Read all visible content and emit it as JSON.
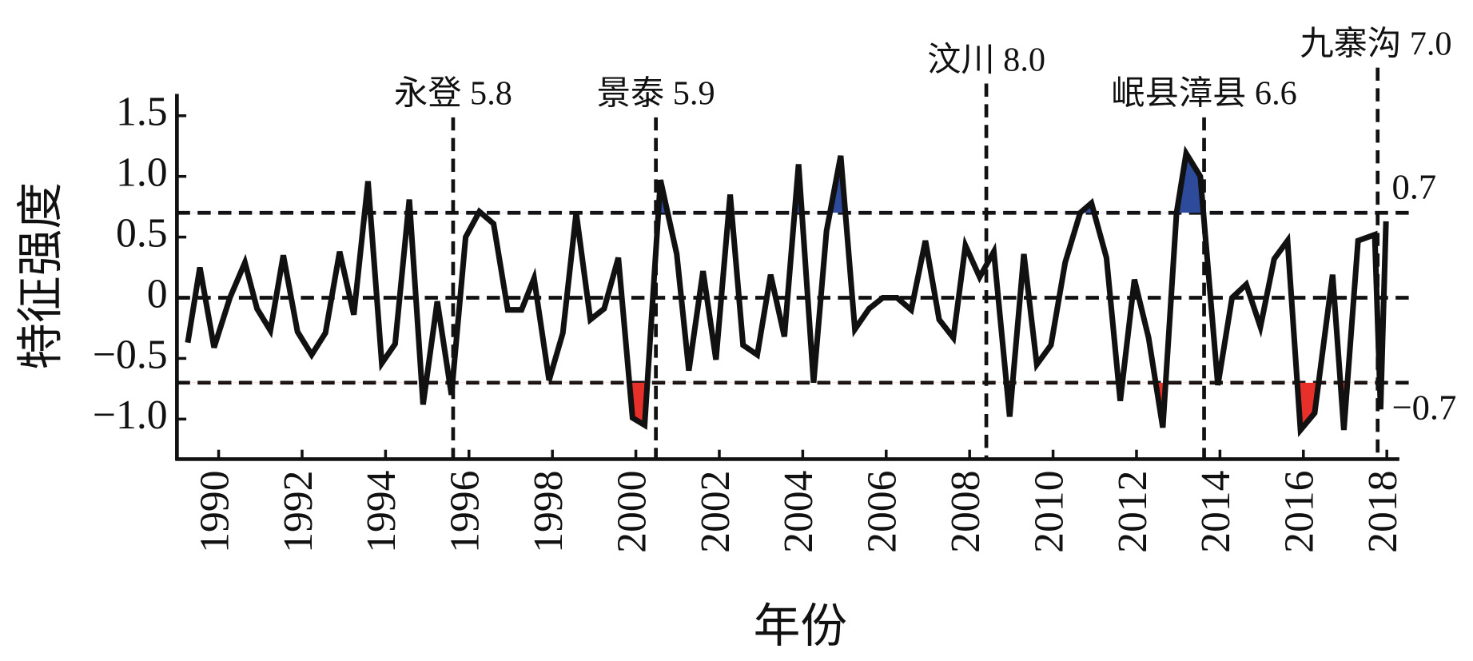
{
  "chart_data": {
    "type": "line",
    "xlabel": "年份",
    "ylabel": "特征强度",
    "xlim": [
      1989,
      2018.3
    ],
    "ylim": [
      -1.33,
      1.68
    ],
    "xticks": [
      1990,
      1992,
      1994,
      1996,
      1998,
      2000,
      2002,
      2004,
      2006,
      2008,
      2010,
      2012,
      2014,
      2016,
      2018
    ],
    "yticks": [
      {
        "value": -1.0,
        "label": "−1.0"
      },
      {
        "value": -0.5,
        "label": "−0.5"
      },
      0,
      0.5,
      {
        "value": 1.0,
        "label": "1.0"
      },
      1.5
    ],
    "reference_lines": [
      {
        "value": 0.7,
        "label": "0.7"
      },
      {
        "value": 0
      },
      {
        "value": -0.7,
        "label": "−0.7"
      }
    ],
    "fill_above_color": "#2e4a9a",
    "fill_below_color": "#e8302a",
    "events": [
      {
        "x": 1995.62,
        "label": "永登 5.8"
      },
      {
        "x": 2000.48,
        "label": "景泰 5.9"
      },
      {
        "x": 2008.4,
        "label": "汶川 8.0"
      },
      {
        "x": 2013.62,
        "label": "岷县漳县 6.6"
      },
      {
        "x": 2017.78,
        "label": "九寨沟 7.0"
      }
    ],
    "series": [
      {
        "color": "#111111",
        "x": [
          1989.26,
          1989.55,
          1989.89,
          1990.27,
          1990.63,
          1990.92,
          1991.24,
          1991.55,
          1991.89,
          1992.23,
          1992.56,
          1992.9,
          1993.24,
          1993.58,
          1993.91,
          1994.23,
          1994.57,
          1994.9,
          1995.24,
          1995.58,
          1995.92,
          1996.25,
          1996.59,
          1996.93,
          1997.26,
          1997.56,
          1997.92,
          1998.25,
          1998.57,
          1998.91,
          1999.24,
          1999.58,
          1999.92,
          2000.21,
          2000.59,
          2000.98,
          2001.27,
          2001.61,
          2001.92,
          2002.26,
          2002.57,
          2002.91,
          2003.23,
          2003.56,
          2003.9,
          2004.26,
          2004.57,
          2004.91,
          2005.25,
          2005.59,
          2005.92,
          2006.26,
          2006.6,
          2006.94,
          2007.27,
          2007.61,
          2007.9,
          2008.24,
          2008.58,
          2008.96,
          2009.3,
          2009.61,
          2009.95,
          2010.29,
          2010.65,
          2010.92,
          2011.28,
          2011.61,
          2011.95,
          2012.29,
          2012.63,
          2012.96,
          2013.19,
          2013.53,
          2013.95,
          2014.29,
          2014.63,
          2014.97,
          2015.3,
          2015.62,
          2015.93,
          2016.27,
          2016.7,
          2016.97,
          2017.31,
          2017.71,
          2017.85,
          2017.98
        ],
        "values": [
          -0.37,
          0.25,
          -0.41,
          0,
          0.29,
          -0.09,
          -0.27,
          0.35,
          -0.28,
          -0.47,
          -0.29,
          0.38,
          -0.14,
          0.96,
          -0.54,
          -0.38,
          0.81,
          -0.88,
          -0.03,
          -0.8,
          0.5,
          0.71,
          0.61,
          -0.1,
          -0.1,
          0.16,
          -0.68,
          -0.29,
          0.7,
          -0.18,
          -0.09,
          0.33,
          -0.99,
          -1.05,
          0.97,
          0.36,
          -0.6,
          0.22,
          -0.51,
          0.85,
          -0.39,
          -0.47,
          0.19,
          -0.32,
          1.1,
          -0.7,
          0.55,
          1.17,
          -0.26,
          -0.09,
          0,
          0,
          -0.1,
          0.47,
          -0.18,
          -0.33,
          0.43,
          0.17,
          0.38,
          -0.98,
          0.36,
          -0.55,
          -0.39,
          0.29,
          0.7,
          0.78,
          0.33,
          -0.85,
          0.15,
          -0.33,
          -1.07,
          0.7,
          1.19,
          1.0,
          -0.72,
          0,
          0.11,
          -0.24,
          0.32,
          0.47,
          -1.09,
          -0.95,
          0.19,
          -1.09,
          0.47,
          0.52,
          -0.92,
          0.63
        ]
      }
    ]
  }
}
